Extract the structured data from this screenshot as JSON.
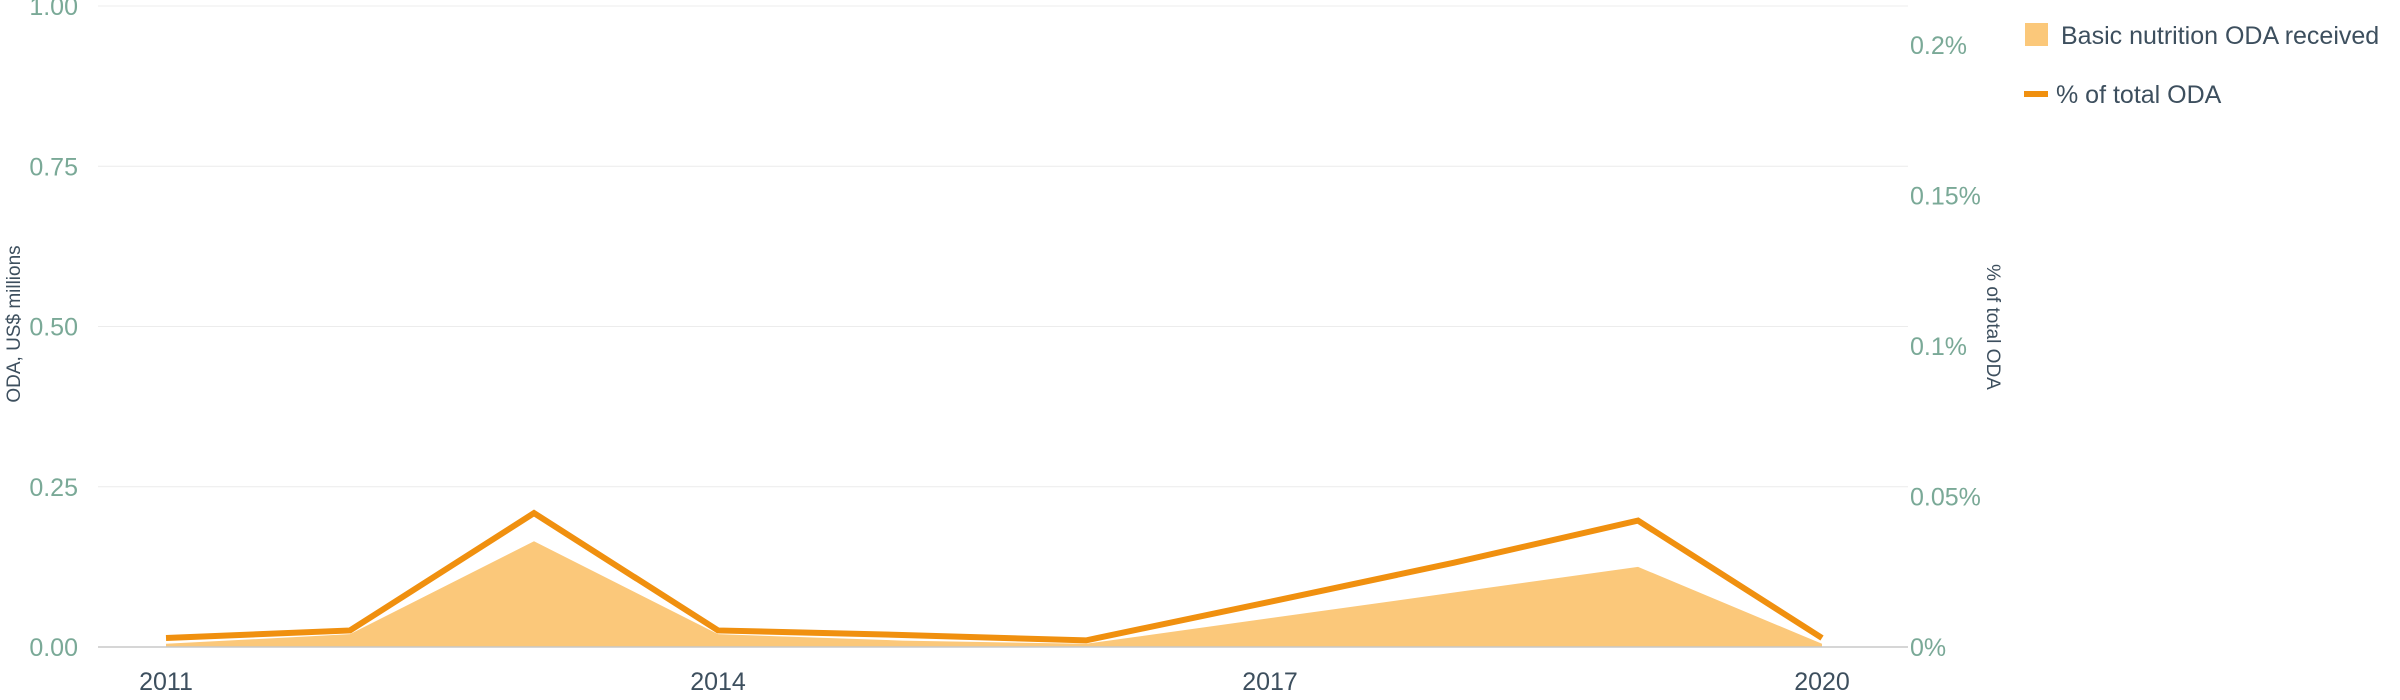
{
  "chart_data": {
    "type": "area+line",
    "x": [
      2011,
      2012,
      2013,
      2014,
      2015,
      2016,
      2017,
      2018,
      2019,
      2020
    ],
    "x_ticks": [
      "2011",
      "2014",
      "2017",
      "2020"
    ],
    "series": [
      {
        "name": "Basic nutrition ODA received",
        "type": "area",
        "axis": "left",
        "color": "#fbc87a",
        "values": [
          0.005,
          0.02,
          0.165,
          0.02,
          0.01,
          0.005,
          0.045,
          0.085,
          0.125,
          0.005
        ]
      },
      {
        "name": "% of total ODA",
        "type": "line",
        "axis": "right",
        "color": "#f0900f",
        "values": [
          0.003,
          0.0055,
          0.0445,
          0.0055,
          0.004,
          0.0022,
          0.015,
          0.028,
          0.042,
          0.003
        ]
      }
    ],
    "y_left": {
      "label": "ODA, US$ millions",
      "range": [
        0,
        1
      ],
      "ticks": [
        "0.00",
        "0.25",
        "0.50",
        "0.75",
        "1.00"
      ]
    },
    "y_right": {
      "label": "% of total ODA",
      "range": [
        0,
        0.2
      ],
      "ticks": [
        "0%",
        "0.05%",
        "0.1%",
        "0.15%",
        "0.2%"
      ]
    },
    "grid": true,
    "legend_position": "top-right"
  }
}
